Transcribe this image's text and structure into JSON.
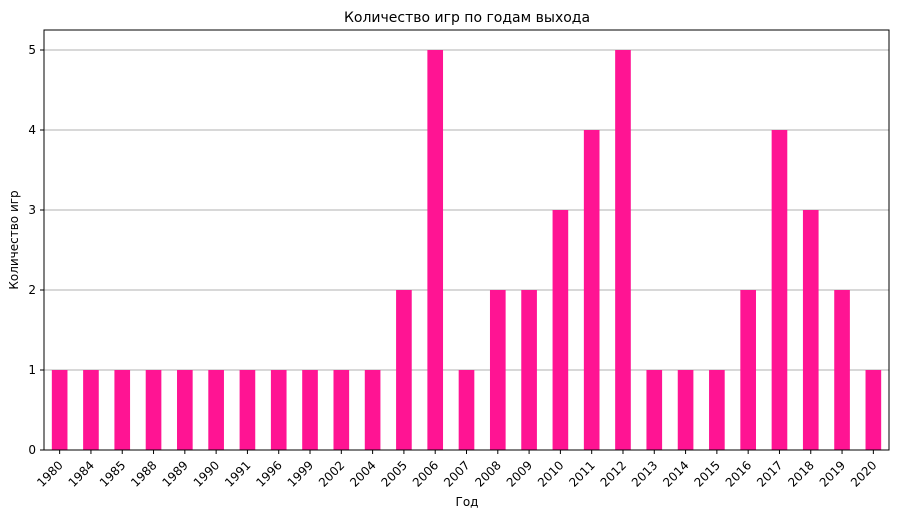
{
  "chart_data": {
    "type": "bar",
    "title": "Количество игр по годам выхода",
    "xlabel": "Год",
    "ylabel": "Количество игр",
    "categories": [
      "1980",
      "1984",
      "1985",
      "1988",
      "1989",
      "1990",
      "1991",
      "1996",
      "1999",
      "2002",
      "2004",
      "2005",
      "2006",
      "2007",
      "2008",
      "2009",
      "2010",
      "2011",
      "2012",
      "2013",
      "2014",
      "2015",
      "2016",
      "2017",
      "2018",
      "2019",
      "2020"
    ],
    "values": [
      1,
      1,
      1,
      1,
      1,
      1,
      1,
      1,
      1,
      1,
      1,
      2,
      5,
      1,
      2,
      2,
      3,
      4,
      5,
      1,
      1,
      1,
      2,
      4,
      3,
      2,
      1
    ],
    "ylim": [
      0,
      5.25
    ],
    "yticks": [
      0,
      1,
      2,
      3,
      4,
      5
    ],
    "grid": "y",
    "bar_color": "#ff1493",
    "grid_color": "#b0b0b0"
  }
}
